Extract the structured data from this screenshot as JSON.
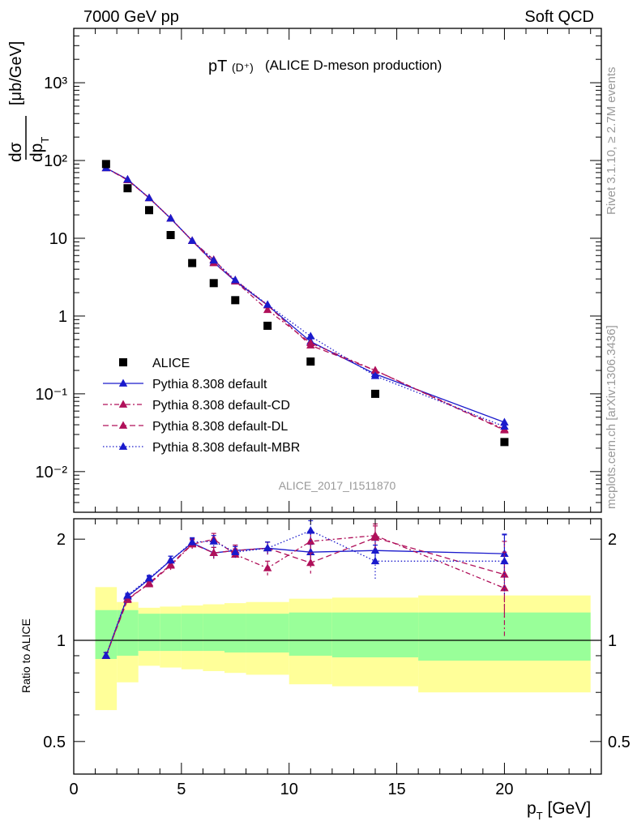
{
  "header": {
    "left": "7000 GeV pp",
    "right": "Soft QCD"
  },
  "side": {
    "rivet": "Rivet 3.1.10, ≥ 2.7M events",
    "mcplots": "mcplots.cern.ch [arXiv:1306.3436]"
  },
  "chart_data": {
    "type": "line",
    "title_main": "pT",
    "title_sub": "(D⁺)",
    "title_rest": "(ALICE D-meson production)",
    "analysis_label": "ALICE_2017_I1511870",
    "xlabel": "p_T [GeV]",
    "ylabel": "dσ/dp_T [μb/GeV]",
    "ratio_ylabel": "Ratio to ALICE",
    "xlim": [
      0,
      24.5
    ],
    "ylim": [
      0.003,
      5000
    ],
    "yscale": "log",
    "ratio_ylim": [
      0.4,
      2.3
    ],
    "ratio_yscale": "log",
    "x_ticks": [
      "0",
      "5",
      "10",
      "15",
      "20"
    ],
    "y_ticks": [
      "10⁻²",
      "10⁻¹",
      "1",
      "10",
      "10²",
      "10³"
    ],
    "ratio_ticks": [
      "0.5",
      "1",
      "2"
    ],
    "legend_position": "lower-left",
    "data": {
      "name": "ALICE",
      "x": [
        1.5,
        2.5,
        3.5,
        4.5,
        5.5,
        6.5,
        7.5,
        9,
        11,
        14,
        20
      ],
      "y": [
        90,
        44,
        23,
        11,
        4.8,
        2.65,
        1.6,
        0.75,
        0.26,
        0.1,
        0.024
      ],
      "bins": [
        [
          1,
          2
        ],
        [
          2,
          3
        ],
        [
          3,
          4
        ],
        [
          4,
          5
        ],
        [
          5,
          6
        ],
        [
          6,
          7
        ],
        [
          7,
          8
        ],
        [
          8,
          10
        ],
        [
          10,
          12
        ],
        [
          12,
          16
        ],
        [
          16,
          24
        ]
      ],
      "stat_band": [
        [
          0.88,
          1.23
        ],
        [
          0.9,
          1.23
        ],
        [
          0.93,
          1.2
        ],
        [
          0.93,
          1.2
        ],
        [
          0.93,
          1.2
        ],
        [
          0.93,
          1.2
        ],
        [
          0.92,
          1.2
        ],
        [
          0.92,
          1.2
        ],
        [
          0.9,
          1.21
        ],
        [
          0.89,
          1.21
        ],
        [
          0.87,
          1.21
        ]
      ],
      "total_band": [
        [
          0.62,
          1.44
        ],
        [
          0.75,
          1.3
        ],
        [
          0.84,
          1.25
        ],
        [
          0.83,
          1.26
        ],
        [
          0.82,
          1.27
        ],
        [
          0.81,
          1.28
        ],
        [
          0.8,
          1.29
        ],
        [
          0.79,
          1.3
        ],
        [
          0.74,
          1.33
        ],
        [
          0.73,
          1.34
        ],
        [
          0.7,
          1.36
        ]
      ]
    },
    "series": [
      {
        "name": "Pythia 8.308 default",
        "color": "#1a1acc",
        "dash": "",
        "x": [
          1.5,
          2.5,
          3.5,
          4.5,
          5.5,
          6.5,
          7.5,
          9,
          11,
          14,
          20
        ],
        "y": [
          80,
          57,
          33,
          18,
          9.3,
          4.9,
          2.8,
          1.38,
          0.47,
          0.18,
          0.043
        ],
        "ratio": [
          0.9,
          1.35,
          1.52,
          1.73,
          1.95,
          1.82,
          1.85,
          1.88,
          1.83,
          1.85,
          1.81
        ],
        "ratio_err": [
          0.02,
          0.02,
          0.03,
          0.05,
          0.06,
          0.07,
          0.07,
          0.08,
          0.1,
          0.14,
          0.25
        ]
      },
      {
        "name": "Pythia 8.308 default-CD",
        "color": "#b0105a",
        "dash": "6,3,2,3",
        "x": [
          1.5,
          2.5,
          3.5,
          4.5,
          5.5,
          6.5,
          7.5,
          9,
          11,
          14,
          20
        ],
        "y": [
          80,
          57,
          33,
          18,
          9.3,
          5.3,
          2.8,
          1.2,
          0.45,
          0.2,
          0.035
        ],
        "ratio": [
          0.9,
          1.33,
          1.47,
          1.67,
          1.93,
          2.0,
          1.8,
          1.64,
          1.97,
          2.05,
          1.43
        ],
        "ratio_err": [
          0.02,
          0.02,
          0.03,
          0.05,
          0.06,
          0.08,
          0.07,
          0.08,
          0.12,
          0.17,
          0.4
        ]
      },
      {
        "name": "Pythia 8.308 default-DL",
        "color": "#b0105a",
        "dash": "7,4",
        "x": [
          1.5,
          2.5,
          3.5,
          4.5,
          5.5,
          6.5,
          7.5,
          9,
          11,
          14,
          20
        ],
        "y": [
          80,
          56,
          33,
          18,
          9.3,
          4.8,
          2.9,
          1.38,
          0.42,
          0.2,
          0.034
        ],
        "ratio": [
          0.9,
          1.32,
          1.48,
          1.68,
          1.94,
          1.82,
          1.85,
          1.88,
          1.7,
          2.02,
          1.57
        ],
        "ratio_err": [
          0.02,
          0.02,
          0.03,
          0.05,
          0.06,
          0.07,
          0.07,
          0.08,
          0.12,
          0.17,
          0.4
        ]
      },
      {
        "name": "Pythia 8.308 default-MBR",
        "color": "#1a1acc",
        "dash": "1.5,2.5",
        "x": [
          1.5,
          2.5,
          3.5,
          4.5,
          5.5,
          6.5,
          7.5,
          9,
          11,
          14,
          20
        ],
        "y": [
          80,
          57,
          33,
          18,
          9.3,
          5.2,
          2.9,
          1.4,
          0.55,
          0.17,
          0.038
        ],
        "ratio": [
          0.9,
          1.36,
          1.53,
          1.73,
          1.96,
          1.97,
          1.83,
          1.88,
          2.12,
          1.72,
          1.72
        ],
        "ratio_err": [
          0.02,
          0.02,
          0.03,
          0.05,
          0.06,
          0.08,
          0.07,
          0.08,
          0.15,
          0.2,
          0.35
        ]
      }
    ]
  }
}
